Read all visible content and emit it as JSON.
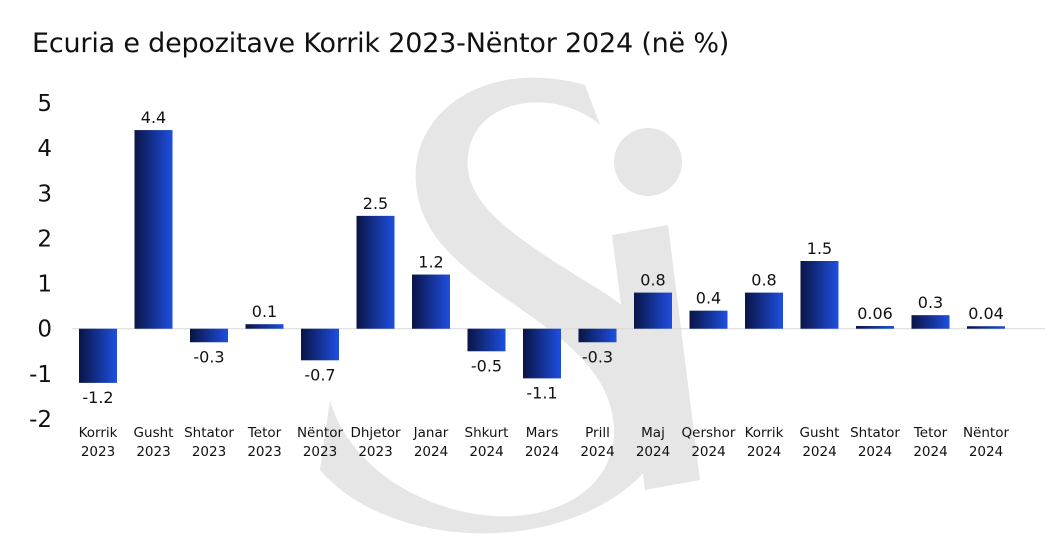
{
  "chart_data": {
    "type": "bar",
    "title": "Ecuria e depozitave Korrik 2023-Nëntor 2024 (në %)",
    "categories": [
      [
        "Korrik",
        "2023"
      ],
      [
        "Gusht",
        "2023"
      ],
      [
        "Shtator",
        "2023"
      ],
      [
        "Tetor",
        "2023"
      ],
      [
        "Nëntor",
        "2023"
      ],
      [
        "Dhjetor",
        "2023"
      ],
      [
        "Janar",
        "2024"
      ],
      [
        "Shkurt",
        "2024"
      ],
      [
        "Mars",
        "2024"
      ],
      [
        "Prill",
        "2024"
      ],
      [
        "Maj",
        "2024"
      ],
      [
        "Qershor",
        "2024"
      ],
      [
        "Korrik",
        "2024"
      ],
      [
        "Gusht",
        "2024"
      ],
      [
        "Shtator",
        "2024"
      ],
      [
        "Tetor",
        "2024"
      ],
      [
        "Nëntor",
        "2024"
      ]
    ],
    "values": [
      -1.2,
      4.4,
      -0.3,
      0.1,
      -0.7,
      2.5,
      1.2,
      -0.5,
      -1.1,
      -0.3,
      0.8,
      0.4,
      0.8,
      1.5,
      0.06,
      0.3,
      0.04
    ],
    "value_labels": [
      "-1.2",
      "4.4",
      "-0.3",
      "0.1",
      "-0.7",
      "2.5",
      "1.2",
      "-0.5",
      "-1.1",
      "-0.3",
      "0.8",
      "0.4",
      "0.8",
      "1.5",
      "0.06",
      "0.3",
      "0.04"
    ],
    "ylim": [
      -2,
      5
    ],
    "yticks": [
      "5",
      "4",
      "3",
      "2",
      "1",
      "0",
      "-1",
      "-2"
    ],
    "ytick_values": [
      5,
      4,
      3,
      2,
      1,
      0,
      -1,
      -2
    ],
    "xlabel": "",
    "ylabel": "",
    "grid": false,
    "legend": "none",
    "colors": {
      "bar_dark": "#0a1446",
      "bar_light": "#1e4fe0",
      "watermark": "#e6e6e6"
    }
  }
}
